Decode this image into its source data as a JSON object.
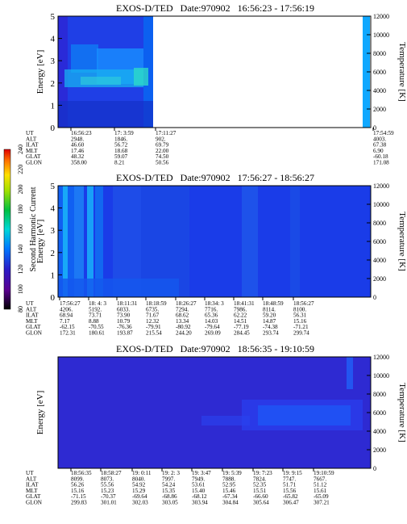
{
  "colorbar": {
    "label": "Second Harmonic Current",
    "ticks": [
      "80",
      "100",
      "120",
      "140",
      "160",
      "180",
      "200",
      "220",
      "240"
    ]
  },
  "chart_data": [
    {
      "type": "heatmap",
      "title": "EXOS-D/TED   Date:970902   16:56:23 - 17:56:19",
      "ylabel": "Energy [eV]",
      "ylabel_right": "Temperature [K]",
      "ylim": [
        0,
        5
      ],
      "ylim_right": [
        0,
        12000
      ],
      "yticks": [
        "0",
        "1",
        "2",
        "3",
        "4",
        "5"
      ],
      "yticks_right": [
        "0",
        "2000",
        "4000",
        "6000",
        "8000",
        "10000",
        "12000"
      ],
      "row_labels": [
        "UT",
        "ALT",
        "ILAT",
        "MLT",
        "GLAT",
        "GLON"
      ],
      "columns": [
        {
          "UT": "16:56:23",
          "ALT": "2948.",
          "ILAT": "46.60",
          "MLT": "17.46",
          "GLAT": "48.32",
          "GLON": "358.00"
        },
        {
          "UT": "17: 3:59",
          "ALT": "1846.",
          "ILAT": "56.72",
          "MLT": "18.68",
          "GLAT": "59.07",
          "GLON": "8.21"
        },
        {
          "UT": "17:11:27",
          "ALT": "902.",
          "ILAT": "69.79",
          "MLT": "22.00",
          "GLAT": "74.50",
          "GLON": "50.56"
        },
        {
          "UT": "17:54:59",
          "ALT": "4003.",
          "ILAT": "67.38",
          "MLT": "6.90",
          "GLAT": "-60.18",
          "GLON": "171.08"
        }
      ]
    },
    {
      "type": "heatmap",
      "title": "EXOS-D/TED   Date:970902   17:56:27 - 18:56:27",
      "ylabel": "Energy [eV]",
      "ylabel_right": "Temperature [K]",
      "ylim": [
        0,
        5
      ],
      "ylim_right": [
        0,
        12000
      ],
      "yticks": [
        "0",
        "1",
        "2",
        "3",
        "4",
        "5"
      ],
      "yticks_right": [
        "0",
        "2000",
        "4000",
        "6000",
        "8000",
        "10000",
        "12000"
      ],
      "row_labels": [
        "UT",
        "ALT",
        "ILAT",
        "MLT",
        "GLAT",
        "GLON"
      ],
      "columns": [
        {
          "UT": "17:56:27",
          "ALT": "4206.",
          "ILAT": "68.94",
          "MLT": "7.17",
          "GLAT": "-62.15",
          "GLON": "172.31"
        },
        {
          "UT": "18: 4: 3",
          "ALT": "5192.",
          "ILAT": "73.71",
          "MLT": "8.88",
          "GLAT": "-70.55",
          "GLON": "180.61"
        },
        {
          "UT": "18:11:31",
          "ALT": "6033.",
          "ILAT": "73.90",
          "MLT": "10.79",
          "GLAT": "-76.36",
          "GLON": "193.87"
        },
        {
          "UT": "18:18:59",
          "ALT": "6735.",
          "ILAT": "71.67",
          "MLT": "12.32",
          "GLAT": "-79.91",
          "GLON": "215.54"
        },
        {
          "UT": "18:26:27",
          "ALT": "7294.",
          "ILAT": "68.62",
          "MLT": "13.34",
          "GLAT": "-80.92",
          "GLON": "244.20"
        },
        {
          "UT": "18:34: 3",
          "ALT": "7716.",
          "ILAT": "65.36",
          "MLT": "14.03",
          "GLAT": "-79.64",
          "GLON": "269.09"
        },
        {
          "UT": "18:41:31",
          "ALT": "7986.",
          "ILAT": "62.22",
          "MLT": "14.51",
          "GLAT": "-77.19",
          "GLON": "284.45"
        },
        {
          "UT": "18:48:59",
          "ALT": "8114.",
          "ILAT": "59.20",
          "MLT": "14.87",
          "GLAT": "-74.38",
          "GLON": "293.74"
        },
        {
          "UT": "18:56:27",
          "ALT": "8100.",
          "ILAT": "56.31",
          "MLT": "15.16",
          "GLAT": "-71.21",
          "GLON": "299.74"
        }
      ]
    },
    {
      "type": "heatmap",
      "title": "EXOS-D/TED   Date:970902   18:56:35 - 19:10:59",
      "ylabel": "Energy [eV]",
      "ylabel_right": "Temperature [K]",
      "ylim": [
        0,
        5
      ],
      "ylim_right": [
        0,
        12000
      ],
      "yticks": [],
      "yticks_right": [
        "0",
        "2000",
        "4000",
        "6000",
        "8000",
        "10000",
        "12000"
      ],
      "row_labels": [
        "UT",
        "ALT",
        "ILAT",
        "MLT",
        "GLAT",
        "GLON"
      ],
      "columns": [
        {
          "UT": "18:56:35",
          "ALT": "8099.",
          "ILAT": "56.26",
          "MLT": "15.16",
          "GLAT": "-71.15",
          "GLON": "299.83"
        },
        {
          "UT": "18:58:27",
          "ALT": "8073.",
          "ILAT": "55.56",
          "MLT": "15.23",
          "GLAT": "-70.37",
          "GLON": "301.01"
        },
        {
          "UT": "19: 0:11",
          "ALT": "8040.",
          "ILAT": "54.92",
          "MLT": "15.29",
          "GLAT": "-69.64",
          "GLON": "302.03"
        },
        {
          "UT": "19: 2: 3",
          "ALT": "7997.",
          "ILAT": "54.24",
          "MLT": "15.35",
          "GLAT": "-68.86",
          "GLON": "303.05"
        },
        {
          "UT": "19: 3:47",
          "ALT": "7949.",
          "ILAT": "53.61",
          "MLT": "15.40",
          "GLAT": "-68.12",
          "GLON": "303.94"
        },
        {
          "UT": "19: 5:39",
          "ALT": "7888.",
          "ILAT": "52.95",
          "MLT": "15.46",
          "GLAT": "-67.34",
          "GLON": "304.84"
        },
        {
          "UT": "19: 7:23",
          "ALT": "7824.",
          "ILAT": "52.35",
          "MLT": "15.51",
          "GLAT": "-66.60",
          "GLON": "305.64"
        },
        {
          "UT": "19: 9:15",
          "ALT": "7747.",
          "ILAT": "51.71",
          "MLT": "15.56",
          "GLAT": "-65.82",
          "GLON": "306.47"
        },
        {
          "UT": "19:10:59",
          "ALT": "7667.",
          "ILAT": "51.12",
          "MLT": "15.61",
          "GLAT": "-65.09",
          "GLON": "307.21"
        }
      ]
    }
  ]
}
